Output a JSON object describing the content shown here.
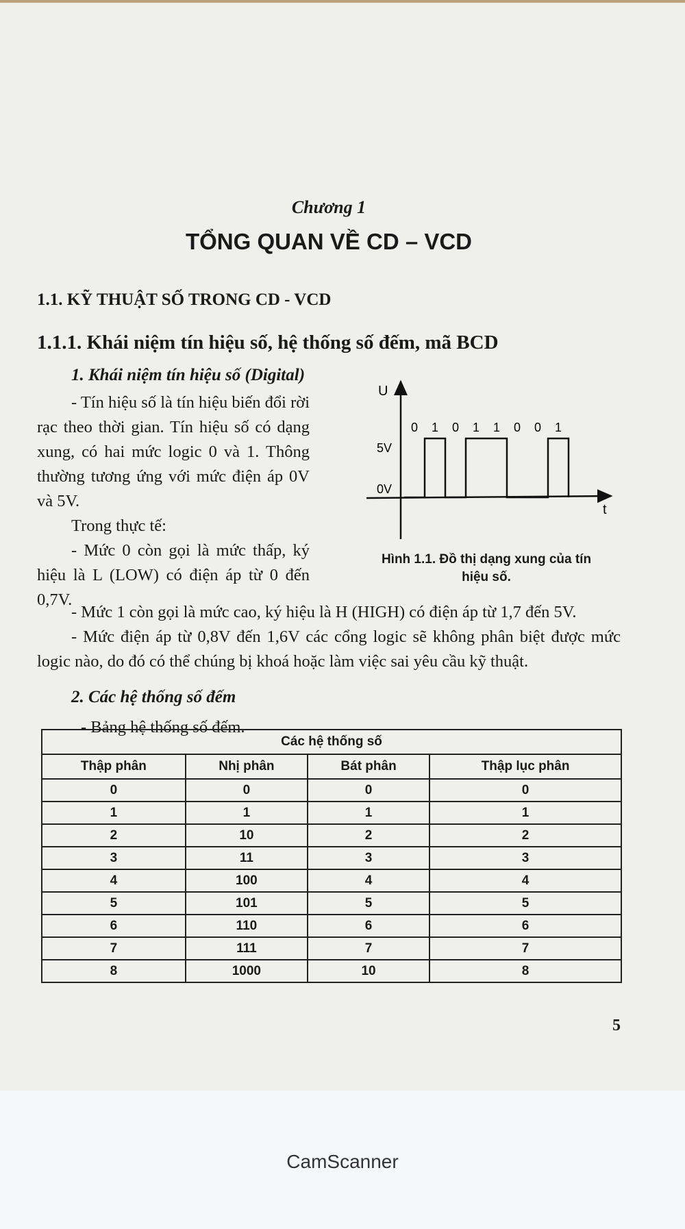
{
  "chapter": "Chương 1",
  "title": "TỔNG QUAN VỀ CD – VCD",
  "section": "1.1. KỸ THUẬT SỐ TRONG CD - VCD",
  "subsection": "1.1.1. Khái niệm tín hiệu số, hệ thống số đếm, mã BCD",
  "part1": {
    "heading": "1. Khái niệm tín hiệu số (Digital)",
    "para1": "- Tín hiệu số là tín hiệu biến đổi rời rạc theo thời gian. Tín hiệu số có dạng xung, có hai mức logic 0 và 1. Thông thường tương ứng với mức điện áp 0V và 5V.",
    "para2": "Trong thực tế:",
    "para3": "- Mức 0 còn gọi là mức thấp, ký hiệu là L (LOW) có điện áp từ 0 đến 0,7V.",
    "para4": "- Mức 1 còn gọi là mức cao, ký hiệu là H (HIGH) có điện áp từ 1,7 đến 5V.",
    "para5": "- Mức điện áp từ 0,8V đến 1,6V các cổng logic sẽ không phân biệt được mức logic nào, do đó có thể chúng bị khoá hoặc làm việc sai yêu cầu kỹ thuật."
  },
  "figure": {
    "y_axis_label": "U",
    "x_axis_label": "t",
    "level_high": "5V",
    "level_low": "0V",
    "bits": [
      "0",
      "1",
      "0",
      "1",
      "1",
      "0",
      "0",
      "1"
    ],
    "caption": "Hình 1.1. Đồ thị dạng xung của tín hiệu số."
  },
  "part2": {
    "heading": "2. Các hệ thống số đếm",
    "intro": "- Bảng hệ thống số đếm."
  },
  "table": {
    "group_header": "Các hệ thống số",
    "headers": [
      "Thập phân",
      "Nhị phân",
      "Bát phân",
      "Thập lục phân"
    ],
    "rows": [
      [
        "0",
        "0",
        "0",
        "0"
      ],
      [
        "1",
        "1",
        "1",
        "1"
      ],
      [
        "2",
        "10",
        "2",
        "2"
      ],
      [
        "3",
        "11",
        "3",
        "3"
      ],
      [
        "4",
        "100",
        "4",
        "4"
      ],
      [
        "5",
        "101",
        "5",
        "5"
      ],
      [
        "6",
        "110",
        "6",
        "6"
      ],
      [
        "7",
        "111",
        "7",
        "7"
      ],
      [
        "8",
        "1000",
        "10",
        "8"
      ]
    ]
  },
  "page_number": "5",
  "footer": "CamScanner"
}
